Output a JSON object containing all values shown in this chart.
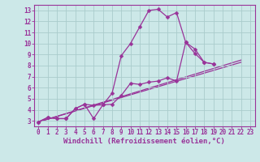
{
  "xlabel": "Windchill (Refroidissement éolien,°C)",
  "bg_color": "#cce8e8",
  "grid_color": "#aacccc",
  "line_color": "#993399",
  "xlim": [
    -0.5,
    23.5
  ],
  "ylim": [
    2.5,
    13.5
  ],
  "xticks": [
    0,
    1,
    2,
    3,
    4,
    5,
    6,
    7,
    8,
    9,
    10,
    11,
    12,
    13,
    14,
    15,
    16,
    17,
    18,
    19,
    20,
    21,
    22,
    23
  ],
  "yticks": [
    3,
    4,
    5,
    6,
    7,
    8,
    9,
    10,
    11,
    12,
    13
  ],
  "curve1_x": [
    0,
    1,
    2,
    3,
    4,
    5,
    6,
    7,
    8,
    9,
    10,
    11,
    12,
    13,
    14,
    15,
    16,
    17,
    18,
    19
  ],
  "curve1_y": [
    2.9,
    3.3,
    3.2,
    3.2,
    4.1,
    4.5,
    4.4,
    4.45,
    5.5,
    8.9,
    10.0,
    11.5,
    13.0,
    13.1,
    12.4,
    12.8,
    10.1,
    9.1,
    8.3,
    8.15
  ],
  "curve2_x": [
    0,
    1,
    2,
    3,
    4,
    5,
    6,
    7,
    8,
    9,
    10,
    11,
    12,
    13,
    14,
    15,
    16,
    17,
    18,
    19
  ],
  "curve2_y": [
    2.9,
    3.3,
    3.2,
    3.2,
    4.1,
    4.5,
    3.2,
    4.45,
    4.5,
    5.3,
    6.4,
    6.3,
    6.5,
    6.6,
    6.9,
    6.6,
    10.1,
    9.5,
    8.3,
    8.15
  ],
  "trend1_x": [
    0,
    22
  ],
  "trend1_y": [
    2.9,
    8.5
  ],
  "trend2_x": [
    0,
    22
  ],
  "trend2_y": [
    2.9,
    8.3
  ],
  "marker_size": 2.5,
  "linewidth": 0.9,
  "tick_fontsize": 5.5,
  "xlabel_fontsize": 6.5
}
